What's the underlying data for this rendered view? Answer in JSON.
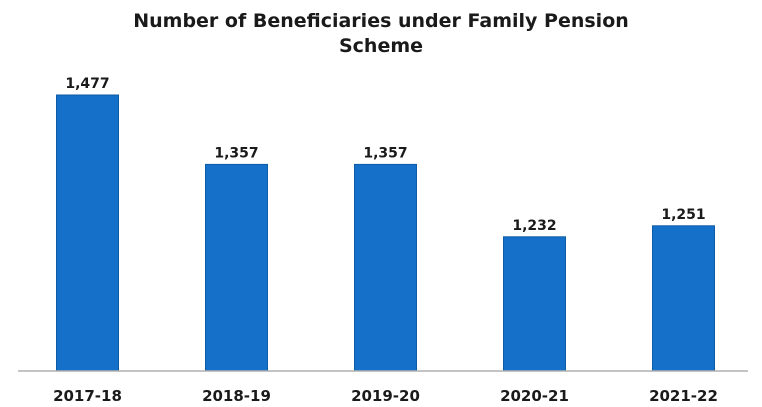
{
  "chart_data": {
    "type": "bar",
    "title": "Number of Beneficiaries under Family Pension Scheme",
    "title_lines": [
      "Number of Beneficiaries under Family Pension",
      "Scheme"
    ],
    "categories": [
      "2017-18",
      "2018-19",
      "2019-20",
      "2020-21",
      "2021-22"
    ],
    "values": [
      1477,
      1357,
      1357,
      1232,
      1251
    ],
    "data_labels": [
      "1,477",
      "1,357",
      "1,357",
      "1,232",
      "1,251"
    ],
    "xlabel": "",
    "ylabel": "",
    "ylim": [
      1000,
      1500
    ],
    "grid": false,
    "legend": "none",
    "bar_color": "#1470c8",
    "bar_edge_color": "#0d5aa6",
    "axis_color": "#b0b0b0"
  }
}
